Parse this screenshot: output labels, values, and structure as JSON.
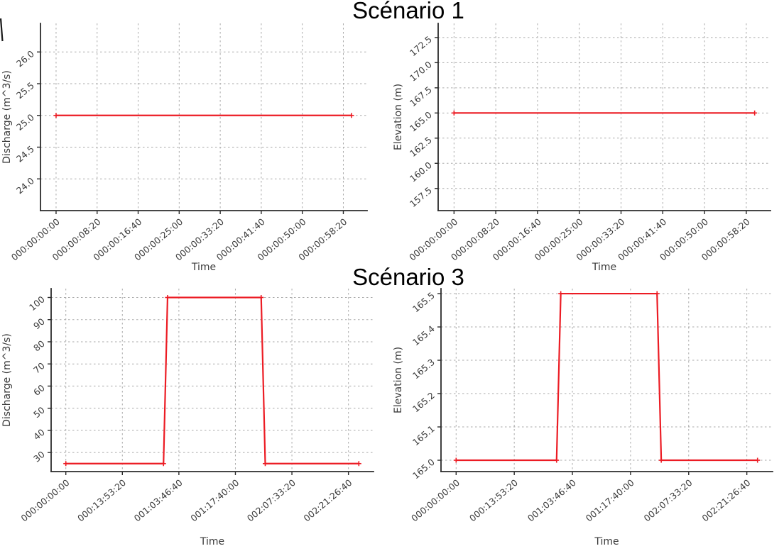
{
  "figures": [
    {
      "title": "Scénario 1"
    },
    {
      "title": "Scénario 3"
    }
  ],
  "colors": {
    "line": "#ec1c24",
    "grid": "#aaaaaa",
    "spine": "#2b2b2b",
    "tick_text": "#3a3a3a",
    "title_text": "#000000",
    "background": "#ffffff"
  },
  "chart_data": [
    {
      "type": "line",
      "figure": "Scénario 1",
      "position": "top-left",
      "xlabel": "Time",
      "ylabel": "Discharge (m^3/s)",
      "grid": true,
      "grid_style": "dashed",
      "line_color": "#ec1c24",
      "x_seconds": [
        0,
        3600
      ],
      "y": [
        25.0,
        25.0
      ],
      "xlim": [
        -190,
        3790
      ],
      "ylim": [
        23.5,
        26.45
      ],
      "xtick_values": [
        0,
        500,
        1000,
        1500,
        2000,
        2500,
        3000,
        3500
      ],
      "xtick_labels": [
        "000:00:00:00",
        "000:00:08:20",
        "000:00:16:40",
        "000:00:25:00",
        "000:00:33:20",
        "000:00:41:40",
        "000:00:50:00",
        "000:00:58:20"
      ],
      "ytick_values": [
        24.0,
        24.5,
        25.0,
        25.5,
        26.0
      ],
      "ytick_labels": [
        "24.0",
        "24.5",
        "25.0",
        "25.5",
        "26.0"
      ]
    },
    {
      "type": "line",
      "figure": "Scénario 1",
      "position": "top-right",
      "xlabel": "Time",
      "ylabel": "Elevation (m)",
      "grid": true,
      "grid_style": "dashed",
      "line_color": "#ec1c24",
      "x_seconds": [
        0,
        3600
      ],
      "y": [
        165.0,
        165.0
      ],
      "xlim": [
        -190,
        3790
      ],
      "ylim": [
        155.3,
        173.9
      ],
      "xtick_values": [
        0,
        500,
        1000,
        1500,
        2000,
        2500,
        3000,
        3500
      ],
      "xtick_labels": [
        "000:00:00:00",
        "000:00:08:20",
        "000:00:16:40",
        "000:00:25:00",
        "000:00:33:20",
        "000:00:41:40",
        "000:00:50:00",
        "000:00:58:20"
      ],
      "ytick_values": [
        157.5,
        160.0,
        162.5,
        165.0,
        167.5,
        170.0,
        172.5
      ],
      "ytick_labels": [
        "157.5",
        "160.0",
        "162.5",
        "165.0",
        "167.5",
        "170.0",
        "172.5"
      ]
    },
    {
      "type": "line",
      "figure": "Scénario 3",
      "position": "bottom-left",
      "xlabel": "Time",
      "ylabel": "Discharge (m^3/s)",
      "grid": true,
      "grid_style": "dashed",
      "line_color": "#ec1c24",
      "x_seconds": [
        0,
        86400,
        90000,
        172800,
        176400,
        259200
      ],
      "y": [
        25,
        25,
        100,
        100,
        25,
        25
      ],
      "xlim": [
        -13000,
        272200
      ],
      "ylim": [
        21.4,
        104.0
      ],
      "xtick_values": [
        0,
        50000,
        100000,
        150000,
        200000,
        250000
      ],
      "xtick_labels": [
        "000:00:00:00",
        "000:13:53:20",
        "001:03:46:40",
        "001:17:40:00",
        "002:07:33:20",
        "002:21:26:40"
      ],
      "ytick_values": [
        30,
        40,
        50,
        60,
        70,
        80,
        90,
        100
      ],
      "ytick_labels": [
        "30",
        "40",
        "50",
        "60",
        "70",
        "80",
        "90",
        "100"
      ]
    },
    {
      "type": "line",
      "figure": "Scénario 3",
      "position": "bottom-right",
      "xlabel": "Time",
      "ylabel": "Elevation (m)",
      "grid": true,
      "grid_style": "dashed",
      "line_color": "#ec1c24",
      "x_seconds": [
        0,
        86400,
        90000,
        172800,
        176400,
        259200
      ],
      "y": [
        165.0,
        165.0,
        165.5,
        165.5,
        165.0,
        165.0
      ],
      "xlim": [
        -13000,
        272200
      ],
      "ylim": [
        164.966,
        165.515
      ],
      "xtick_values": [
        0,
        50000,
        100000,
        150000,
        200000,
        250000
      ],
      "xtick_labels": [
        "000:00:00:00",
        "000:13:53:20",
        "001:03:46:40",
        "001:17:40:00",
        "002:07:33:20",
        "002:21:26:40"
      ],
      "ytick_values": [
        165.0,
        165.1,
        165.2,
        165.3,
        165.4,
        165.5
      ],
      "ytick_labels": [
        "165.0",
        "165.1",
        "165.2",
        "165.3",
        "165.4",
        "165.5"
      ]
    }
  ]
}
